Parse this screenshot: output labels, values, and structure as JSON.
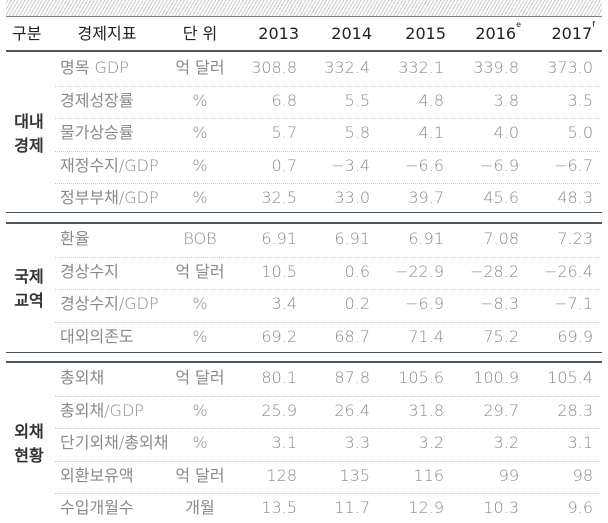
{
  "header": {
    "category": "구분",
    "indicator": "경제지표",
    "unit": "단 위",
    "years": [
      {
        "year": "2013",
        "mark": ""
      },
      {
        "year": "2014",
        "mark": ""
      },
      {
        "year": "2015",
        "mark": ""
      },
      {
        "year": "2016",
        "mark": "e"
      },
      {
        "year": "2017",
        "mark": "f"
      }
    ]
  },
  "groups": [
    {
      "label_lines": [
        "대내",
        "경제"
      ],
      "rows": [
        {
          "indicator": "명목 GDP",
          "unit": "억 달러",
          "values": [
            "308.8",
            "332.4",
            "332.1",
            "339.8",
            "373.0"
          ]
        },
        {
          "indicator": "경제성장률",
          "unit": "%",
          "values": [
            "6.8",
            "5.5",
            "4.8",
            "3.8",
            "3.5"
          ]
        },
        {
          "indicator": "물가상승률",
          "unit": "%",
          "values": [
            "5.7",
            "5.8",
            "4.1",
            "4.0",
            "5.0"
          ]
        },
        {
          "indicator": "재정수지/GDP",
          "unit": "%",
          "values": [
            "0.7",
            "−3.4",
            "−6.6",
            "−6.9",
            "−6.7"
          ]
        },
        {
          "indicator": "정부부채/GDP",
          "unit": "%",
          "values": [
            "32.5",
            "33.0",
            "39.7",
            "45.6",
            "48.3"
          ]
        }
      ]
    },
    {
      "label_lines": [
        "국제",
        "교역"
      ],
      "rows": [
        {
          "indicator": "환율",
          "unit": "BOB",
          "values": [
            "6.91",
            "6.91",
            "6.91",
            "7.08",
            "7.23"
          ]
        },
        {
          "indicator": "경상수지",
          "unit": "억 달러",
          "values": [
            "10.5",
            "0.6",
            "−22.9",
            "−28.2",
            "−26.4"
          ]
        },
        {
          "indicator": "경상수지/GDP",
          "unit": "%",
          "values": [
            "3.4",
            "0.2",
            "−6.9",
            "−8.3",
            "−7.1"
          ]
        },
        {
          "indicator": "대외의존도",
          "unit": "%",
          "values": [
            "69.2",
            "68.7",
            "71.4",
            "75.2",
            "69.9"
          ]
        }
      ]
    },
    {
      "label_lines": [
        "외채",
        "현황"
      ],
      "rows": [
        {
          "indicator": "총외채",
          "unit": "억 달러",
          "values": [
            "80.1",
            "87.8",
            "105.6",
            "100.9",
            "105.4"
          ]
        },
        {
          "indicator": "총외채/GDP",
          "unit": "%",
          "values": [
            "25.9",
            "26.4",
            "31.8",
            "29.7",
            "28.3"
          ]
        },
        {
          "indicator": "단기외채/총외채",
          "unit": "%",
          "values": [
            "3.1",
            "3.3",
            "3.2",
            "3.2",
            "3.1"
          ]
        },
        {
          "indicator": "외환보유액",
          "unit": "억 달러",
          "values": [
            "128",
            "135",
            "116",
            "99",
            "98"
          ]
        },
        {
          "indicator": "수입개월수",
          "unit": "개월",
          "values": [
            "13.5",
            "11.7",
            "12.9",
            "10.3",
            "9.6"
          ]
        }
      ]
    }
  ]
}
